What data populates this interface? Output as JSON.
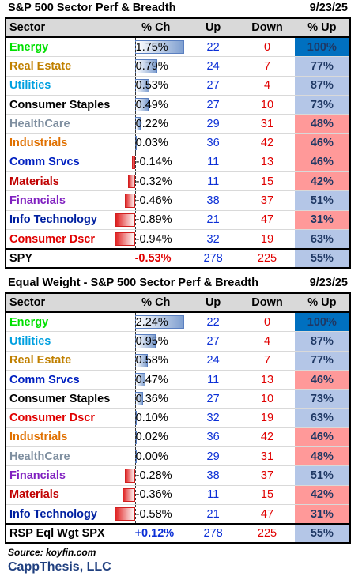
{
  "colors": {
    "Energy": "#00e000",
    "Real Estate": "#c08000",
    "Utilities": "#00a0e0",
    "Consumer Staples": "#000000",
    "HealthCare": "#7f8fa0",
    "Industrials": "#e07000",
    "Comm Srvcs": "#0020c0",
    "Materials": "#c00000",
    "Financials": "#8020c0",
    "Info Technology": "#0020a0",
    "Consumer Dscr": "#e00000",
    "RSP Eql Wgt SPX": "#000000",
    "SPY": "#000000"
  },
  "table1": {
    "title": "S&P 500 Sector Perf & Breadth",
    "date": "9/23/25",
    "headers": {
      "sector": "Sector",
      "ch": "% Ch",
      "up": "Up",
      "down": "Down",
      "pctup": "% Up"
    },
    "rows": [
      {
        "sector": "Energy",
        "ch": "1.75%",
        "chv": 1.75,
        "up": "22",
        "down": "0",
        "pctup": "100%",
        "pu": 100
      },
      {
        "sector": "Real Estate",
        "ch": "0.79%",
        "chv": 0.79,
        "up": "24",
        "down": "7",
        "pctup": "77%",
        "pu": 77
      },
      {
        "sector": "Utilities",
        "ch": "0.53%",
        "chv": 0.53,
        "up": "27",
        "down": "4",
        "pctup": "87%",
        "pu": 87
      },
      {
        "sector": "Consumer Staples",
        "ch": "0.49%",
        "chv": 0.49,
        "up": "27",
        "down": "10",
        "pctup": "73%",
        "pu": 73
      },
      {
        "sector": "HealthCare",
        "ch": "0.22%",
        "chv": 0.22,
        "up": "29",
        "down": "31",
        "pctup": "48%",
        "pu": 48
      },
      {
        "sector": "Industrials",
        "ch": "0.03%",
        "chv": 0.03,
        "up": "36",
        "down": "42",
        "pctup": "46%",
        "pu": 46
      },
      {
        "sector": "Comm Srvcs",
        "ch": "-0.14%",
        "chv": -0.14,
        "up": "11",
        "down": "13",
        "pctup": "46%",
        "pu": 46
      },
      {
        "sector": "Materials",
        "ch": "-0.32%",
        "chv": -0.32,
        "up": "11",
        "down": "15",
        "pctup": "42%",
        "pu": 42
      },
      {
        "sector": "Financials",
        "ch": "-0.46%",
        "chv": -0.46,
        "up": "38",
        "down": "37",
        "pctup": "51%",
        "pu": 51
      },
      {
        "sector": "Info Technology",
        "ch": "-0.89%",
        "chv": -0.89,
        "up": "21",
        "down": "47",
        "pctup": "31%",
        "pu": 31
      },
      {
        "sector": "Consumer Dscr",
        "ch": "-0.94%",
        "chv": -0.94,
        "up": "32",
        "down": "19",
        "pctup": "63%",
        "pu": 63
      }
    ],
    "summary": {
      "sector": "SPY",
      "ch": "-0.53%",
      "up": "278",
      "down": "225",
      "pctup": "55%"
    }
  },
  "table2": {
    "title": "Equal Weight - S&P 500 Sector Perf & Breadth",
    "date": "9/23/25",
    "headers": {
      "sector": "Sector",
      "ch": "% Ch",
      "up": "Up",
      "down": "Down",
      "pctup": "% Up"
    },
    "rows": [
      {
        "sector": "Energy",
        "ch": "2.24%",
        "chv": 2.24,
        "up": "22",
        "down": "0",
        "pctup": "100%",
        "pu": 100
      },
      {
        "sector": "Utilities",
        "ch": "0.95%",
        "chv": 0.95,
        "up": "27",
        "down": "4",
        "pctup": "87%",
        "pu": 87
      },
      {
        "sector": "Real Estate",
        "ch": "0.58%",
        "chv": 0.58,
        "up": "24",
        "down": "7",
        "pctup": "77%",
        "pu": 77
      },
      {
        "sector": "Comm Srvcs",
        "ch": "0.47%",
        "chv": 0.47,
        "up": "11",
        "down": "13",
        "pctup": "46%",
        "pu": 46
      },
      {
        "sector": "Consumer Staples",
        "ch": "0.36%",
        "chv": 0.36,
        "up": "27",
        "down": "10",
        "pctup": "73%",
        "pu": 73
      },
      {
        "sector": "Consumer Dscr",
        "ch": "0.10%",
        "chv": 0.1,
        "up": "32",
        "down": "19",
        "pctup": "63%",
        "pu": 63
      },
      {
        "sector": "Industrials",
        "ch": "0.02%",
        "chv": 0.02,
        "up": "36",
        "down": "42",
        "pctup": "46%",
        "pu": 46
      },
      {
        "sector": "HealthCare",
        "ch": "0.00%",
        "chv": 0.0,
        "up": "29",
        "down": "31",
        "pctup": "48%",
        "pu": 48
      },
      {
        "sector": "Financials",
        "ch": "-0.28%",
        "chv": -0.28,
        "up": "38",
        "down": "37",
        "pctup": "51%",
        "pu": 51
      },
      {
        "sector": "Materials",
        "ch": "-0.36%",
        "chv": -0.36,
        "up": "11",
        "down": "15",
        "pctup": "42%",
        "pu": 42
      },
      {
        "sector": "Info Technology",
        "ch": "-0.58%",
        "chv": -0.58,
        "up": "21",
        "down": "47",
        "pctup": "31%",
        "pu": 31
      }
    ],
    "summary": {
      "sector": "RSP Eql Wgt SPX",
      "ch": "+0.12%",
      "up": "278",
      "down": "225",
      "pctup": "55%"
    }
  },
  "footer": {
    "source": "Source: koyfin.com",
    "brand": "CappThesis, LLC"
  }
}
